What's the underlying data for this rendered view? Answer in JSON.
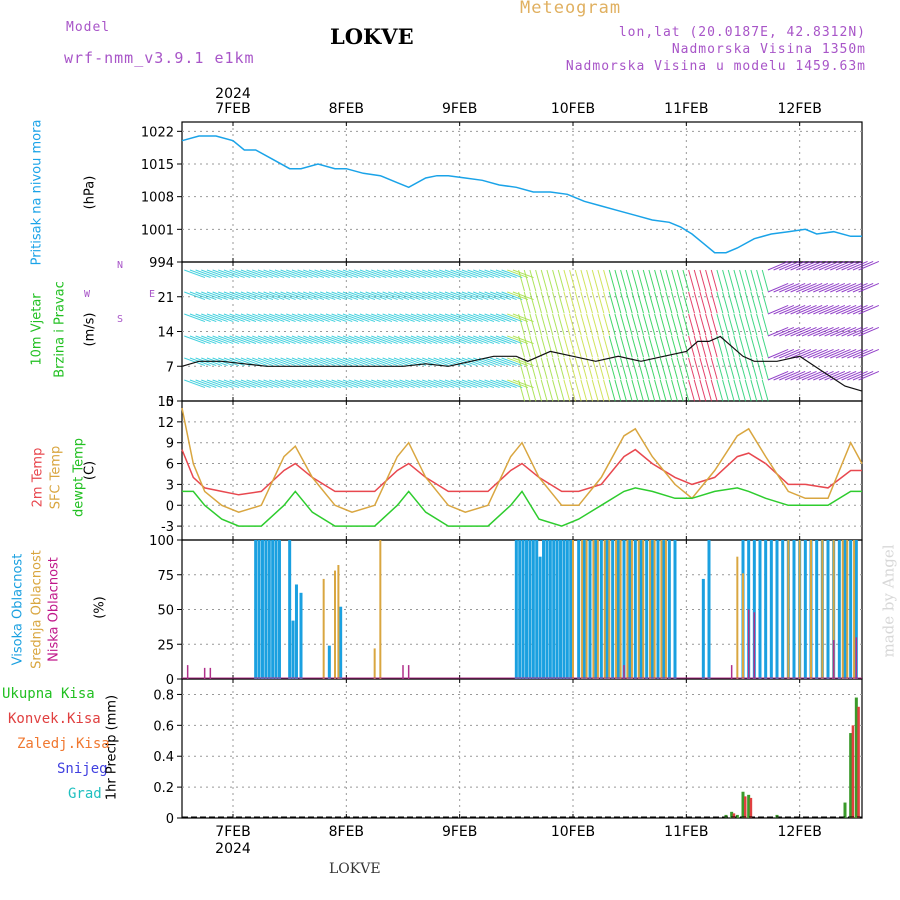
{
  "header": {
    "model_label": "Model",
    "model_name": "wrf-nmm_v3.9.1 e1km",
    "title": "LOKVE",
    "meteogram": "Meteogram",
    "lonlat": "lon,lat (20.0187E, 42.8312N)",
    "altitude": "Nadmorska Visina 1350m",
    "model_altitude": "Nadmorska Visina u modelu 1459.63m"
  },
  "footer": {
    "location": "LOKVE",
    "signature": "made by Angel"
  },
  "axis": {
    "year": "2024",
    "dates": [
      "7FEB",
      "8FEB",
      "9FEB",
      "10FEB",
      "11FEB",
      "12FEB"
    ]
  },
  "labels": {
    "pressure": [
      "Pritisak na nivou mora",
      "(hPa)"
    ],
    "wind": [
      "10m Vjetar",
      "Brzina i Pravac",
      "(m/s)"
    ],
    "compass": [
      "N",
      "W",
      "E",
      "S"
    ],
    "temp": [
      "2m Temp",
      "SFC Temp",
      "dewpt Temp",
      "(C)"
    ],
    "cloud": [
      "Visoka Oblacnost",
      "Srednja Oblacnost",
      "Niska Oblacnost",
      "(%)"
    ],
    "precip_legend": [
      "Ukupna Kisa",
      "Konvek.Kisa",
      "Zaledj.Kisa",
      "Snijeg",
      "Grad"
    ],
    "precip_unit": "1hr Precip (mm)"
  },
  "colors": {
    "pressure": "#1aa3e8",
    "t2m": "#e8484f",
    "sfc": "#d9a640",
    "dew": "#2ecc2e",
    "cloud_high": "#1aa0e0",
    "cloud_mid": "#d9a640",
    "cloud_low": "#b0308a",
    "precip_total": "#3a9a2a",
    "precip_conv": "#e04040",
    "purple": "#a855c8"
  },
  "chart_data": [
    {
      "type": "line",
      "name": "pressure",
      "yticks": [
        994,
        1001,
        1008,
        1015,
        1022
      ],
      "ylim": [
        994,
        1024
      ],
      "x_days": [
        6.55,
        6.7,
        6.85,
        7.0,
        7.1,
        7.2,
        7.35,
        7.5,
        7.6,
        7.75,
        7.9,
        8.0,
        8.15,
        8.3,
        8.45,
        8.55,
        8.7,
        8.8,
        8.9,
        9.05,
        9.2,
        9.35,
        9.5,
        9.65,
        9.8,
        9.95,
        10.1,
        10.25,
        10.4,
        10.55,
        10.7,
        10.85,
        10.95,
        11.05,
        11.15,
        11.25,
        11.35,
        11.45,
        11.6,
        11.75,
        11.9,
        12.05,
        12.15,
        12.3,
        12.45,
        12.55
      ],
      "values": [
        1020,
        1021,
        1021,
        1020,
        1018,
        1018,
        1016,
        1014,
        1014,
        1015,
        1014,
        1014,
        1013,
        1012.5,
        1011,
        1010,
        1012,
        1012.5,
        1012.5,
        1012,
        1011.5,
        1010.5,
        1010,
        1009,
        1009,
        1008.5,
        1007,
        1006,
        1005,
        1004,
        1003,
        1002.5,
        1001.5,
        1000,
        998,
        996,
        996,
        997,
        999,
        1000,
        1000.5,
        1001,
        1000,
        1000.5,
        999.5,
        999.5
      ]
    },
    {
      "type": "line",
      "name": "wind",
      "yticks": [
        0,
        7,
        14,
        21
      ],
      "ylim": [
        0,
        28
      ],
      "x_days": [
        6.55,
        6.7,
        6.9,
        7.1,
        7.3,
        7.5,
        7.7,
        7.9,
        8.1,
        8.3,
        8.5,
        8.7,
        8.9,
        9.1,
        9.3,
        9.5,
        9.6,
        9.8,
        10.0,
        10.2,
        10.4,
        10.6,
        10.8,
        11.0,
        11.1,
        11.2,
        11.3,
        11.4,
        11.5,
        11.6,
        11.8,
        12.0,
        12.2,
        12.4,
        12.55
      ],
      "values": [
        7,
        8,
        8,
        7.5,
        7,
        7,
        7,
        7,
        7,
        7,
        7,
        7.5,
        7,
        8,
        9,
        9,
        8,
        10,
        9,
        8,
        9,
        8,
        9,
        10,
        12,
        12,
        13,
        11,
        9,
        8,
        8,
        9,
        6,
        3,
        2
      ]
    },
    {
      "type": "line",
      "name": "temperature",
      "yticks": [
        -3,
        0,
        3,
        6,
        9,
        12,
        15
      ],
      "ylim": [
        -5,
        15
      ],
      "x_days": [
        6.55,
        6.65,
        6.75,
        6.9,
        7.05,
        7.25,
        7.45,
        7.55,
        7.7,
        7.9,
        8.05,
        8.25,
        8.45,
        8.55,
        8.7,
        8.9,
        9.05,
        9.25,
        9.45,
        9.55,
        9.7,
        9.9,
        10.05,
        10.25,
        10.45,
        10.55,
        10.7,
        10.9,
        11.05,
        11.25,
        11.45,
        11.55,
        11.7,
        11.9,
        12.05,
        12.25,
        12.45,
        12.55
      ],
      "series": [
        {
          "name": "2m Temp",
          "values": [
            8,
            4,
            2.5,
            2,
            1.5,
            2,
            5,
            6,
            4,
            2,
            2,
            2,
            5,
            6,
            4,
            2,
            2,
            2,
            5,
            6,
            4,
            2,
            2,
            3,
            7,
            8,
            6,
            4,
            3,
            4,
            7,
            7.5,
            6,
            3,
            3,
            2.5,
            5,
            5
          ]
        },
        {
          "name": "SFC Temp",
          "values": [
            14,
            6,
            2,
            0,
            -1,
            0,
            7,
            8.5,
            4,
            0,
            -1,
            0,
            7,
            9,
            4,
            0,
            -1,
            0,
            7,
            9,
            4,
            0,
            0,
            4,
            10,
            11,
            7,
            3,
            1,
            5,
            10,
            11,
            7,
            2,
            1,
            1,
            9,
            6
          ]
        },
        {
          "name": "dewpt Temp",
          "values": [
            2,
            2,
            0,
            -2,
            -3,
            -3,
            0,
            2,
            -1,
            -3,
            -3,
            -3,
            0,
            2,
            -1,
            -3,
            -3,
            -3,
            0,
            2,
            -2,
            -3,
            -2,
            0,
            2,
            2.5,
            2,
            1,
            1,
            2,
            2.5,
            2,
            1,
            0,
            0,
            0,
            2,
            2
          ]
        }
      ]
    },
    {
      "type": "bar",
      "name": "cloud",
      "yticks": [
        0,
        25,
        50,
        75,
        100
      ],
      "ylim": [
        0,
        100
      ],
      "series": [
        {
          "name": "Visoka Oblacnost",
          "x_days": [
            7.2,
            7.23,
            7.26,
            7.29,
            7.32,
            7.35,
            7.38,
            7.41,
            7.5,
            7.53,
            7.56,
            7.6,
            7.85,
            7.95,
            9.5,
            9.53,
            9.56,
            9.59,
            9.62,
            9.65,
            9.68,
            9.71,
            9.74,
            9.77,
            9.8,
            9.83,
            9.86,
            9.89,
            9.92,
            9.95,
            9.98,
            10.05,
            10.1,
            10.15,
            10.2,
            10.25,
            10.3,
            10.35,
            10.4,
            10.45,
            10.5,
            10.55,
            10.6,
            10.65,
            10.7,
            10.75,
            10.8,
            10.85,
            10.9,
            11.15,
            11.2,
            11.5,
            11.55,
            11.6,
            11.65,
            11.7,
            11.75,
            11.8,
            11.85,
            11.9,
            11.95,
            12.0,
            12.05,
            12.1,
            12.15,
            12.2,
            12.25,
            12.3,
            12.35,
            12.4,
            12.45,
            12.5
          ],
          "values": [
            100,
            100,
            100,
            100,
            100,
            100,
            100,
            100,
            100,
            42,
            68,
            62,
            24,
            52,
            100,
            100,
            100,
            100,
            100,
            100,
            100,
            88,
            100,
            100,
            100,
            100,
            100,
            100,
            100,
            100,
            100,
            100,
            100,
            100,
            100,
            100,
            100,
            100,
            100,
            100,
            100,
            100,
            100,
            100,
            100,
            100,
            100,
            100,
            100,
            72,
            100,
            100,
            100,
            100,
            100,
            100,
            100,
            100,
            100,
            100,
            100,
            100,
            100,
            100,
            100,
            100,
            100,
            100,
            100,
            100,
            100,
            100
          ]
        },
        {
          "name": "Srednja Oblacnost",
          "x_days": [
            7.8,
            7.9,
            7.93,
            8.25,
            8.3,
            10.0,
            10.08,
            10.12,
            10.18,
            10.22,
            10.28,
            10.32,
            10.38,
            10.42,
            10.48,
            10.52,
            10.58,
            10.62,
            10.68,
            10.72,
            10.78,
            10.82,
            11.45,
            11.5,
            11.9,
            12.0,
            12.1,
            12.2,
            12.3,
            12.38,
            12.42,
            12.48
          ],
          "values": [
            72,
            78,
            82,
            22,
            100,
            100,
            100,
            100,
            100,
            100,
            100,
            100,
            100,
            100,
            100,
            100,
            100,
            100,
            100,
            100,
            100,
            100,
            88,
            76,
            100,
            100,
            100,
            100,
            100,
            100,
            100,
            100
          ]
        },
        {
          "name": "Niska Oblacnost",
          "x_days": [
            6.6,
            6.75,
            6.8,
            8.5,
            8.55,
            10.45,
            11.4,
            11.55,
            11.6,
            12.3,
            12.5
          ],
          "values": [
            10,
            8,
            8,
            10,
            10,
            10,
            10,
            50,
            48,
            28,
            30
          ]
        }
      ]
    },
    {
      "type": "bar",
      "name": "precip",
      "yticks": [
        0,
        0.2,
        0.4,
        0.6,
        0.8
      ],
      "ylim": [
        0,
        0.9
      ],
      "series": [
        {
          "name": "Ukupna Kisa",
          "x_days": [
            11.35,
            11.4,
            11.45,
            11.5,
            11.55,
            11.8,
            12.4,
            12.45,
            12.5
          ],
          "values": [
            0.02,
            0.04,
            0.02,
            0.17,
            0.15,
            0.02,
            0.1,
            0.55,
            0.78
          ]
        },
        {
          "name": "Konvek.Kisa",
          "x_days": [
            11.42,
            11.52,
            11.57,
            12.47,
            12.52
          ],
          "values": [
            0.03,
            0.14,
            0.13,
            0.6,
            0.72
          ]
        }
      ]
    }
  ]
}
